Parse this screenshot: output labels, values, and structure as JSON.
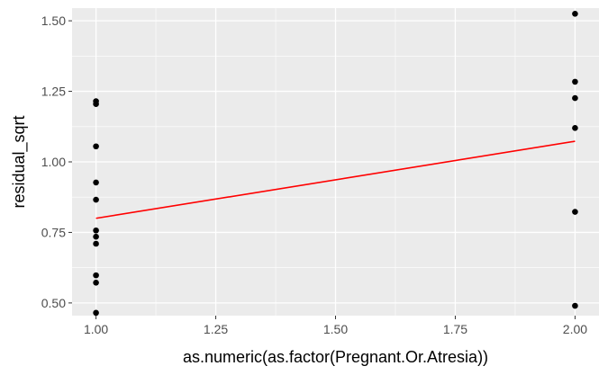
{
  "chart_data": {
    "type": "scatter",
    "title": "",
    "xlabel": "as.numeric(as.factor(Pregnant.Or.Atresia))",
    "ylabel": "residual_sqrt",
    "xlim": [
      0.95,
      2.05
    ],
    "ylim": [
      0.455,
      1.545
    ],
    "x_ticks": [
      1.0,
      1.25,
      1.5,
      1.75,
      2.0
    ],
    "x_tick_labels": [
      "1.00",
      "1.25",
      "1.50",
      "1.75",
      "2.00"
    ],
    "y_ticks": [
      0.5,
      0.75,
      1.0,
      1.25,
      1.5
    ],
    "y_tick_labels": [
      "0.50",
      "0.75",
      "1.00",
      "1.25",
      "1.50"
    ],
    "grid": true,
    "legend": "none",
    "points": [
      {
        "x": 1,
        "y": 1.215
      },
      {
        "x": 1,
        "y": 1.205
      },
      {
        "x": 1,
        "y": 1.055
      },
      {
        "x": 1,
        "y": 0.927
      },
      {
        "x": 1,
        "y": 0.866
      },
      {
        "x": 1,
        "y": 0.757
      },
      {
        "x": 1,
        "y": 0.735
      },
      {
        "x": 1,
        "y": 0.71
      },
      {
        "x": 1,
        "y": 0.598
      },
      {
        "x": 1,
        "y": 0.572
      },
      {
        "x": 1,
        "y": 0.465
      },
      {
        "x": 2,
        "y": 1.525
      },
      {
        "x": 2,
        "y": 1.284
      },
      {
        "x": 2,
        "y": 1.226
      },
      {
        "x": 2,
        "y": 1.12
      },
      {
        "x": 2,
        "y": 0.823
      },
      {
        "x": 2,
        "y": 0.49
      }
    ],
    "fit_line": {
      "x": [
        1,
        2
      ],
      "y": [
        0.8,
        1.073
      ],
      "color": "#ff0000"
    },
    "point_color": "#000000",
    "panel_background": "#ebebeb",
    "grid_color": "#ffffff"
  }
}
